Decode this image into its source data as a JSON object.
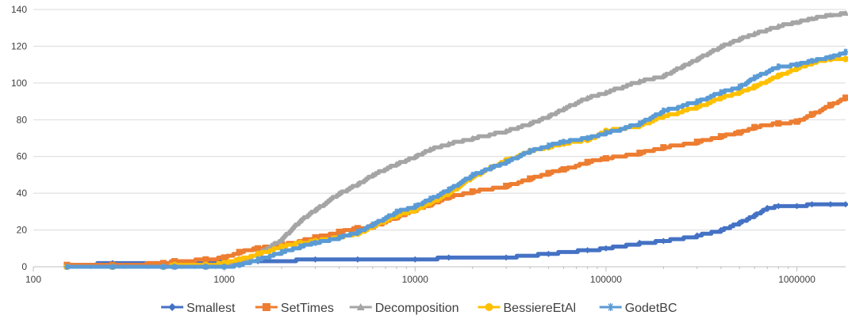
{
  "chart_data": {
    "type": "line",
    "title": "",
    "xlabel": "",
    "ylabel": "",
    "x_scale": "log",
    "xlim": [
      100,
      1800000
    ],
    "ylim": [
      0,
      140
    ],
    "grid": {
      "horizontal": true,
      "vertical": false
    },
    "legend_position": "bottom",
    "x_ticks": [
      100,
      1000,
      10000,
      100000,
      1000000
    ],
    "x_tick_labels": [
      "100",
      "1000",
      "10000",
      "100000",
      "1000000"
    ],
    "y_ticks": [
      0,
      20,
      40,
      60,
      80,
      100,
      120,
      140
    ],
    "y_tick_labels": [
      "0",
      "20",
      "40",
      "60",
      "80",
      "100",
      "120",
      "140"
    ],
    "series": [
      {
        "name": "Smallest",
        "color": "#4472C4",
        "marker": "diamond",
        "points": [
          [
            150,
            1
          ],
          [
            260,
            2
          ],
          [
            480,
            2
          ],
          [
            550,
            2
          ],
          [
            800,
            3
          ],
          [
            1000,
            3
          ],
          [
            1500,
            3
          ],
          [
            3000,
            4
          ],
          [
            5000,
            4
          ],
          [
            10000,
            4
          ],
          [
            15000,
            5
          ],
          [
            30000,
            5
          ],
          [
            50000,
            7
          ],
          [
            80000,
            9
          ],
          [
            100000,
            10
          ],
          [
            150000,
            13
          ],
          [
            200000,
            14
          ],
          [
            300000,
            17
          ],
          [
            400000,
            20
          ],
          [
            500000,
            24
          ],
          [
            600000,
            28
          ],
          [
            700000,
            32
          ],
          [
            800000,
            33
          ],
          [
            1000000,
            33
          ],
          [
            1200000,
            34
          ],
          [
            1500000,
            34
          ],
          [
            1800000,
            34
          ]
        ]
      },
      {
        "name": "SetTimes",
        "color": "#ED7D31",
        "marker": "square",
        "points": [
          [
            150,
            1
          ],
          [
            260,
            1
          ],
          [
            480,
            2
          ],
          [
            550,
            3
          ],
          [
            800,
            4
          ],
          [
            1000,
            5
          ],
          [
            1200,
            8
          ],
          [
            1500,
            10
          ],
          [
            2000,
            12
          ],
          [
            3000,
            16
          ],
          [
            4000,
            19
          ],
          [
            5000,
            21
          ],
          [
            6000,
            22
          ],
          [
            8000,
            27
          ],
          [
            10000,
            31
          ],
          [
            12000,
            34
          ],
          [
            15000,
            38
          ],
          [
            20000,
            41
          ],
          [
            30000,
            44
          ],
          [
            40000,
            48
          ],
          [
            50000,
            51
          ],
          [
            60000,
            53
          ],
          [
            80000,
            57
          ],
          [
            100000,
            59
          ],
          [
            150000,
            62
          ],
          [
            200000,
            65
          ],
          [
            300000,
            68
          ],
          [
            400000,
            71
          ],
          [
            500000,
            73
          ],
          [
            600000,
            76
          ],
          [
            800000,
            78
          ],
          [
            1000000,
            79
          ],
          [
            1200000,
            83
          ],
          [
            1500000,
            88
          ],
          [
            1800000,
            92
          ]
        ]
      },
      {
        "name": "Decomposition",
        "color": "#A5A5A5",
        "marker": "triangle",
        "points": [
          [
            150,
            0
          ],
          [
            260,
            0
          ],
          [
            480,
            0
          ],
          [
            550,
            0
          ],
          [
            800,
            0
          ],
          [
            1000,
            1
          ],
          [
            1200,
            3
          ],
          [
            1500,
            7
          ],
          [
            2000,
            15
          ],
          [
            2500,
            25
          ],
          [
            3000,
            31
          ],
          [
            4000,
            40
          ],
          [
            5000,
            45
          ],
          [
            6000,
            50
          ],
          [
            8000,
            56
          ],
          [
            10000,
            60
          ],
          [
            12000,
            64
          ],
          [
            15000,
            67
          ],
          [
            20000,
            70
          ],
          [
            30000,
            74
          ],
          [
            40000,
            78
          ],
          [
            50000,
            82
          ],
          [
            60000,
            86
          ],
          [
            80000,
            92
          ],
          [
            100000,
            95
          ],
          [
            150000,
            101
          ],
          [
            200000,
            104
          ],
          [
            250000,
            109
          ],
          [
            300000,
            113
          ],
          [
            400000,
            120
          ],
          [
            500000,
            124
          ],
          [
            600000,
            127
          ],
          [
            800000,
            131
          ],
          [
            1000000,
            133
          ],
          [
            1200000,
            135
          ],
          [
            1500000,
            137
          ],
          [
            1800000,
            138
          ]
        ]
      },
      {
        "name": "BessiereEtAl",
        "color": "#FFC000",
        "marker": "circle",
        "points": [
          [
            150,
            0
          ],
          [
            260,
            0
          ],
          [
            480,
            0
          ],
          [
            550,
            1
          ],
          [
            800,
            1
          ],
          [
            1000,
            2
          ],
          [
            1200,
            4
          ],
          [
            1500,
            7
          ],
          [
            2000,
            11
          ],
          [
            2500,
            13
          ],
          [
            3000,
            14
          ],
          [
            4000,
            16
          ],
          [
            5000,
            18
          ],
          [
            6000,
            22
          ],
          [
            8000,
            28
          ],
          [
            10000,
            31
          ],
          [
            12000,
            35
          ],
          [
            15000,
            40
          ],
          [
            20000,
            49
          ],
          [
            25000,
            54
          ],
          [
            30000,
            58
          ],
          [
            40000,
            63
          ],
          [
            50000,
            65
          ],
          [
            60000,
            67
          ],
          [
            80000,
            69
          ],
          [
            100000,
            74
          ],
          [
            150000,
            77
          ],
          [
            200000,
            82
          ],
          [
            300000,
            87
          ],
          [
            400000,
            92
          ],
          [
            500000,
            95
          ],
          [
            600000,
            98
          ],
          [
            800000,
            104
          ],
          [
            1000000,
            108
          ],
          [
            1200000,
            111
          ],
          [
            1500000,
            113
          ],
          [
            1800000,
            113
          ]
        ]
      },
      {
        "name": "GodetBC",
        "color": "#5B9BD5",
        "marker": "asterisk",
        "points": [
          [
            150,
            0
          ],
          [
            260,
            0
          ],
          [
            480,
            0
          ],
          [
            550,
            0
          ],
          [
            800,
            0
          ],
          [
            1000,
            0
          ],
          [
            1200,
            1
          ],
          [
            1500,
            4
          ],
          [
            2000,
            8
          ],
          [
            2500,
            11
          ],
          [
            3000,
            13
          ],
          [
            4000,
            16
          ],
          [
            5000,
            19
          ],
          [
            6000,
            23
          ],
          [
            8000,
            30
          ],
          [
            10000,
            33
          ],
          [
            12000,
            37
          ],
          [
            15000,
            42
          ],
          [
            20000,
            50
          ],
          [
            25000,
            54
          ],
          [
            30000,
            57
          ],
          [
            40000,
            63
          ],
          [
            50000,
            66
          ],
          [
            60000,
            68
          ],
          [
            80000,
            70
          ],
          [
            100000,
            73
          ],
          [
            150000,
            78
          ],
          [
            200000,
            85
          ],
          [
            300000,
            90
          ],
          [
            400000,
            95
          ],
          [
            500000,
            98
          ],
          [
            600000,
            103
          ],
          [
            800000,
            109
          ],
          [
            1000000,
            110
          ],
          [
            1200000,
            112
          ],
          [
            1500000,
            114
          ],
          [
            1800000,
            117
          ]
        ]
      }
    ]
  }
}
